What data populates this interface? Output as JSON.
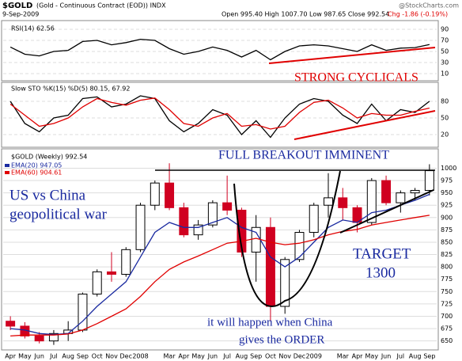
{
  "header": {
    "symbol": "$GOLD",
    "name": "(Gold - Continuous Contract (EOD)) INDX",
    "date": "9-Sep-2009",
    "quote": "Open 995.40 High 1007.70 Low 987.65 Close 992.54",
    "change": "Chg -1.86 (-0.19%)",
    "credit": "@StockCharts.com"
  },
  "annotations": {
    "cyclicals": "STRONG CYCLICALS",
    "breakout": "FULL BREAKOUT IMMINENT",
    "war": [
      "US vs China",
      "geopolitical war"
    ],
    "target": [
      "TARGET",
      "1300"
    ],
    "order": [
      "it will happen when China",
      "gives the ORDER"
    ]
  },
  "chart_data": [
    {
      "type": "line",
      "title": "RSI(14) 62.56",
      "ylim": [
        0,
        100
      ],
      "yticks": [
        10,
        30,
        50,
        70,
        90
      ],
      "series": [
        {
          "name": "RSI(14)",
          "color": "#000000",
          "values": [
            58,
            45,
            42,
            50,
            52,
            68,
            70,
            62,
            66,
            72,
            70,
            55,
            45,
            50,
            58,
            52,
            40,
            52,
            35,
            50,
            60,
            62,
            60,
            55,
            50,
            62,
            52,
            56,
            57,
            62.56
          ]
        }
      ]
    },
    {
      "type": "line",
      "title": "Slow STO %K(15) %D(5) 80.15, 67.92",
      "ylim": [
        0,
        100
      ],
      "yticks": [
        20,
        50,
        80
      ],
      "series": [
        {
          "name": "%K(15)",
          "color": "#000000",
          "values": [
            80,
            40,
            25,
            50,
            55,
            85,
            88,
            70,
            75,
            90,
            85,
            45,
            25,
            40,
            65,
            55,
            20,
            45,
            15,
            50,
            75,
            85,
            80,
            55,
            40,
            75,
            45,
            65,
            60,
            80.15
          ]
        },
        {
          "name": "%D(5)",
          "color": "#e00000",
          "values": [
            75,
            55,
            35,
            40,
            50,
            70,
            85,
            78,
            73,
            82,
            86,
            65,
            40,
            35,
            50,
            58,
            35,
            38,
            30,
            35,
            60,
            78,
            82,
            68,
            50,
            58,
            55,
            55,
            62,
            67.92
          ]
        }
      ]
    },
    {
      "type": "candlestick",
      "title": "$GOLD (Weekly) 992.54",
      "categories": [
        "Apr",
        "May",
        "Jun",
        "Jul",
        "Aug",
        "Sep",
        "Oct",
        "Nov",
        "Dec",
        "2008",
        null,
        "Mar",
        "Apr",
        "May",
        "Jun",
        "Jul",
        "Aug",
        "Sep",
        "Oct",
        "Nov",
        "Dec",
        "2009",
        null,
        "Mar",
        "Apr",
        "May",
        "Jun",
        "Jul",
        "Aug",
        "Sep"
      ],
      "open": [
        690,
        680,
        660,
        650,
        665,
        672,
        745,
        790,
        785,
        835,
        925,
        970,
        920,
        865,
        885,
        930,
        915,
        830,
        880,
        720,
        815,
        870,
        925,
        940,
        920,
        890,
        975,
        930,
        950,
        955
      ],
      "high": [
        700,
        688,
        668,
        672,
        690,
        748,
        795,
        830,
        840,
        930,
        975,
        1010,
        930,
        895,
        935,
        985,
        920,
        905,
        900,
        820,
        875,
        930,
        990,
        960,
        925,
        980,
        985,
        955,
        960,
        1008
      ],
      "low": [
        672,
        655,
        645,
        642,
        650,
        668,
        740,
        770,
        780,
        830,
        915,
        915,
        860,
        855,
        880,
        905,
        820,
        770,
        690,
        705,
        810,
        860,
        900,
        895,
        870,
        885,
        925,
        910,
        935,
        945
      ],
      "close": [
        680,
        660,
        650,
        665,
        672,
        745,
        790,
        785,
        835,
        925,
        970,
        920,
        865,
        885,
        930,
        915,
        830,
        880,
        720,
        815,
        870,
        925,
        940,
        920,
        890,
        975,
        930,
        950,
        955,
        995
      ],
      "ylim": [
        635,
        1020
      ],
      "yticks": [
        650,
        675,
        700,
        725,
        750,
        775,
        800,
        825,
        850,
        875,
        900,
        925,
        950,
        975,
        1000
      ],
      "series": [
        {
          "name": "EMA(20) 947.05",
          "color": "#1a2aa0",
          "values": [
            675,
            672,
            665,
            663,
            665,
            690,
            720,
            745,
            770,
            820,
            870,
            890,
            880,
            880,
            890,
            900,
            880,
            870,
            820,
            800,
            820,
            850,
            880,
            895,
            890,
            910,
            915,
            925,
            935,
            947.05
          ]
        },
        {
          "name": "EMA(60) 904.61",
          "color": "#e00000",
          "values": [
            660,
            662,
            662,
            662,
            664,
            672,
            685,
            700,
            715,
            740,
            770,
            795,
            810,
            822,
            835,
            848,
            852,
            858,
            850,
            845,
            848,
            855,
            865,
            872,
            876,
            885,
            890,
            895,
            900,
            904.61
          ]
        }
      ]
    }
  ]
}
